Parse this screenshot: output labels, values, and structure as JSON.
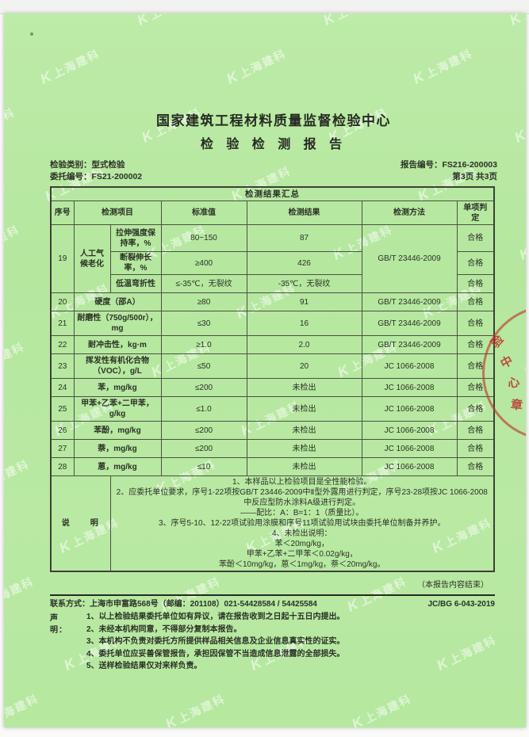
{
  "page": {
    "title": "国家建筑工程材料质量监督检验中心",
    "subtitle": "检 验 检 测 报 告",
    "meta": {
      "category_label": "检验类别：",
      "category_value": "型式检验",
      "report_no_label": "报告编号：",
      "report_no_value": "FS216-200003",
      "entrust_no_label": "委托编号：",
      "entrust_no_value": "FS21-200002",
      "page_info": "第3页 共3页"
    }
  },
  "table": {
    "caption": "检测结果汇总",
    "headers": {
      "no": "序号",
      "item": "检测项目",
      "standard": "标准值",
      "result": "检测结果",
      "method": "检测方法",
      "verdict": "单项判定"
    },
    "group19": {
      "no": "19",
      "item": "人工气候老化",
      "method": "GB/T 23446-2009",
      "subrows": [
        {
          "sub_item": "拉伸强度保持率，%",
          "standard": "80~150",
          "result": "87",
          "verdict": "合格"
        },
        {
          "sub_item": "断裂伸长率，%",
          "standard": "≥400",
          "result": "426",
          "verdict": "合格"
        },
        {
          "sub_item": "低温弯折性",
          "standard": "≤-35℃，无裂纹",
          "result": "-35℃，无裂纹",
          "verdict": "合格"
        }
      ]
    },
    "rows": [
      {
        "no": "20",
        "item": "硬度（邵A）",
        "standard": "≥80",
        "result": "91",
        "method": "GB/T 23446-2009",
        "verdict": "合格"
      },
      {
        "no": "21",
        "item": "耐磨性（750g/500r），mg",
        "standard": "≤30",
        "result": "16",
        "method": "GB/T 23446-2009",
        "verdict": "合格"
      },
      {
        "no": "22",
        "item": "耐冲击性，kg·m",
        "standard": "≥1.0",
        "result": "2.0",
        "method": "GB/T 23446-2009",
        "verdict": "合格"
      },
      {
        "no": "23",
        "item": "挥发性有机化合物（VOC），g/L",
        "standard": "≤50",
        "result": "20",
        "method": "JC 1066-2008",
        "verdict": "合格"
      },
      {
        "no": "24",
        "item": "苯，mg/kg",
        "standard": "≤200",
        "result": "未检出",
        "method": "JC 1066-2008",
        "verdict": "合格"
      },
      {
        "no": "25",
        "item": "甲苯+乙苯+二甲苯，g/kg",
        "standard": "≤1.0",
        "result": "未检出",
        "method": "JC 1066-2008",
        "verdict": "合格"
      },
      {
        "no": "26",
        "item": "苯酚，mg/kg",
        "standard": "≤200",
        "result": "未检出",
        "method": "JC 1066-2008",
        "verdict": "合格"
      },
      {
        "no": "27",
        "item": "萘，mg/kg",
        "standard": "≤200",
        "result": "未检出",
        "method": "JC 1066-2008",
        "verdict": "合格"
      },
      {
        "no": "28",
        "item": "蒽，mg/kg",
        "standard": "≤10",
        "result": "未检出",
        "method": "JC 1066-2008",
        "verdict": "合格"
      }
    ],
    "notes": {
      "label": "说　　明",
      "lines": [
        "1、本样品以上检验项目是全性能检验。",
        "2、应委托单位要求，序号1-22项按GB/T 23446-2009中Ⅱ型外露用进行判定，序号23-28项按JC 1066-2008中反应型防水涂料A级进行判定。",
        "——配比：A：B=1：1（质量比）。",
        "3、序号5-10、12-22项试验用涂膜和序号11项试验用试块由委托单位制备并养护。",
        "4、未检出说明：",
        "苯＜20mg/kg，",
        "甲苯+乙苯+二甲苯＜0.02g/kg，",
        "苯酚＜10mg/kg，蒽＜1mg/kg，萘＜20mg/kg。"
      ]
    }
  },
  "footer": {
    "end_note": "（本报告内容结束）",
    "contact_label": "联系方式：",
    "contact_value": "上海市申富路568号（邮编：201108）021-54428584 / 54425584",
    "doc_code": "JC/BG 6-043-2019",
    "statement_label": "声　　明：",
    "statements": [
      "1、以上检验结果委托单位如有异议，请在报告收到之日起十五日内提出。",
      "2、未经本机构同意，不得部分复制本报告。",
      "3、本机构不负责对委托方所提供样品相关信息及企业信息真实性的证实。",
      "4、委托单位应妥善保管报告，承担因保管不当造成信息泄露的全部损失。",
      "5、送样检验结果仅对来样负责。"
    ]
  },
  "watermark": {
    "logo_glyph": "K",
    "text": "上海建科"
  },
  "seal": {
    "chars": [
      "验",
      "中",
      "心",
      "章"
    ]
  },
  "colors": {
    "paper_green": "#b8e8a2",
    "text_dark": "#2b3126",
    "seal_red": "#c43a32"
  }
}
